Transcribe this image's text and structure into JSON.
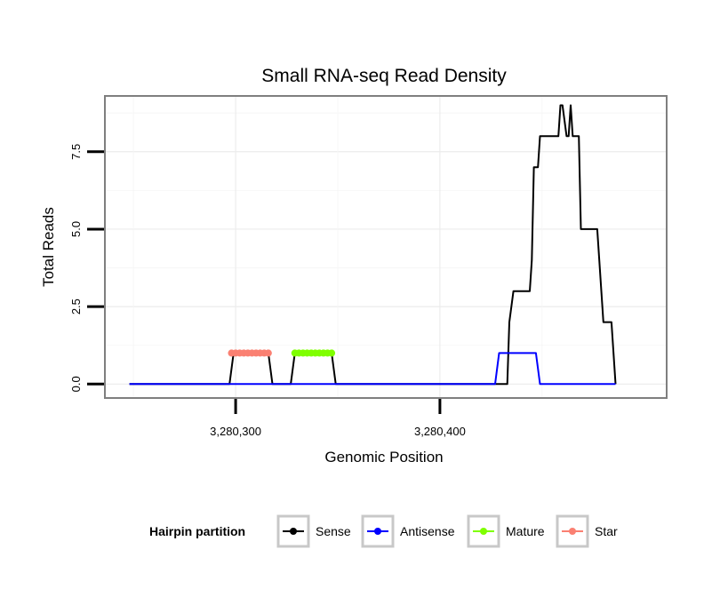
{
  "chart_data": {
    "type": "line",
    "title": "Small RNA-seq Read Density",
    "xlabel": "Genomic Position",
    "ylabel": "Total Reads",
    "xlim": [
      3280236,
      3280511
    ],
    "ylim": [
      -0.45,
      9.3
    ],
    "x_ticks": [
      {
        "value": 3280300,
        "label": "3,280,300"
      },
      {
        "value": 3280400,
        "label": "3,280,400"
      }
    ],
    "y_ticks": [
      {
        "value": 0,
        "label": "0.0"
      },
      {
        "value": 2.5,
        "label": "2.5"
      },
      {
        "value": 5,
        "label": "5.0"
      },
      {
        "value": 7.5,
        "label": "7.5"
      }
    ],
    "grid": true,
    "legend_position": "bottom",
    "legend_title": "Hairpin partition",
    "series": [
      {
        "name": "Sense",
        "color": "#000000",
        "markers": false,
        "x": [
          3280248,
          3280297,
          3280299,
          3280316,
          3280318,
          3280327,
          3280329,
          3280347,
          3280349,
          3280428,
          3280433,
          3280434,
          3280436,
          3280444,
          3280445,
          3280446,
          3280447,
          3280448,
          3280449,
          3280450,
          3280452,
          3280458,
          3280459,
          3280460,
          3280462,
          3280463,
          3280464,
          3280465,
          3280466,
          3280467,
          3280468,
          3280469,
          3280470,
          3280471,
          3280477,
          3280478,
          3280479,
          3280480,
          3280483,
          3280484,
          3280485,
          3280486
        ],
        "y": [
          0,
          0,
          1,
          1,
          0,
          0,
          1,
          1,
          0,
          0,
          0,
          2,
          3,
          3,
          4,
          7,
          7,
          7,
          8,
          8,
          8,
          8,
          9,
          9,
          8,
          8,
          9,
          8,
          8,
          8,
          8,
          5,
          5,
          5,
          5,
          4,
          3,
          2,
          2,
          2,
          1,
          0
        ]
      },
      {
        "name": "Antisense",
        "color": "#0000ff",
        "markers": false,
        "x": [
          3280248,
          3280427,
          3280429,
          3280447,
          3280449,
          3280486
        ],
        "y": [
          0,
          0,
          1,
          1,
          0,
          0
        ]
      },
      {
        "name": "Mature",
        "color": "#7fff00",
        "markers": true,
        "x": [
          3280329,
          3280331,
          3280333,
          3280335,
          3280337,
          3280339,
          3280341,
          3280343,
          3280345,
          3280347
        ],
        "y": [
          1,
          1,
          1,
          1,
          1,
          1,
          1,
          1,
          1,
          1
        ]
      },
      {
        "name": "Star",
        "color": "#fa8072",
        "markers": true,
        "x": [
          3280298,
          3280300,
          3280302,
          3280304,
          3280306,
          3280308,
          3280310,
          3280312,
          3280314,
          3280316
        ],
        "y": [
          1,
          1,
          1,
          1,
          1,
          1,
          1,
          1,
          1,
          1
        ]
      }
    ]
  }
}
